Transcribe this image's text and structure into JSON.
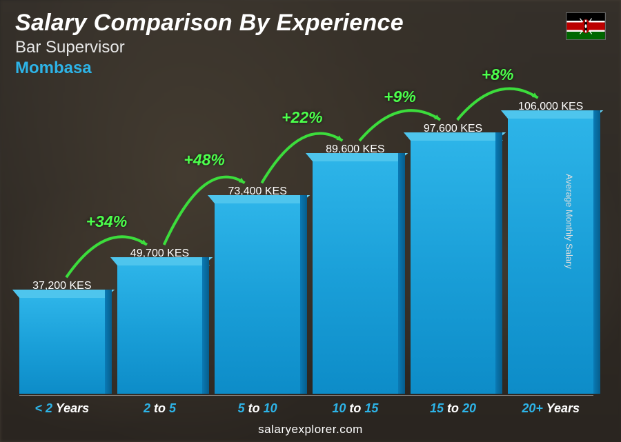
{
  "header": {
    "title": "Salary Comparison By Experience",
    "subtitle": "Bar Supervisor",
    "location": "Mombasa",
    "location_color": "#2db4e8"
  },
  "flag": {
    "country": "Kenya",
    "stripes": [
      "#000000",
      "#ffffff",
      "#bb0000",
      "#ffffff",
      "#006600"
    ],
    "stripe_heights": [
      9,
      2,
      9,
      2,
      9
    ]
  },
  "chart": {
    "type": "bar-3d",
    "ylabel": "Average Monthly Salary",
    "ylim_max": 106000,
    "bar_colors": {
      "front": "#1a9fd8",
      "top": "#4ec5ed",
      "side": "#065d8c"
    },
    "categories": [
      {
        "label_accent": "< 2",
        "label_plain": " Years",
        "value": 37200,
        "value_label": "37,200 KES",
        "xcolor": "#2db4e8"
      },
      {
        "label_accent": "2",
        "label_mid": " to ",
        "label_accent2": "5",
        "value": 49700,
        "value_label": "49,700 KES",
        "xcolor": "#2db4e8"
      },
      {
        "label_accent": "5",
        "label_mid": " to ",
        "label_accent2": "10",
        "value": 73400,
        "value_label": "73,400 KES",
        "xcolor": "#2db4e8"
      },
      {
        "label_accent": "10",
        "label_mid": " to ",
        "label_accent2": "15",
        "value": 89600,
        "value_label": "89,600 KES",
        "xcolor": "#2db4e8"
      },
      {
        "label_accent": "15",
        "label_mid": " to ",
        "label_accent2": "20",
        "value": 97600,
        "value_label": "97,600 KES",
        "xcolor": "#2db4e8"
      },
      {
        "label_accent": "20+",
        "label_plain": " Years",
        "value": 106000,
        "value_label": "106,000 KES",
        "xcolor": "#2db4e8"
      }
    ],
    "pct_changes": [
      {
        "label": "+34%"
      },
      {
        "label": "+48%"
      },
      {
        "label": "+22%"
      },
      {
        "label": "+9%"
      },
      {
        "label": "+8%"
      }
    ],
    "pct_color": "#4cff4c",
    "arrow_color": "#3cdd3c"
  },
  "footer": {
    "source": "salaryexplorer.com"
  }
}
